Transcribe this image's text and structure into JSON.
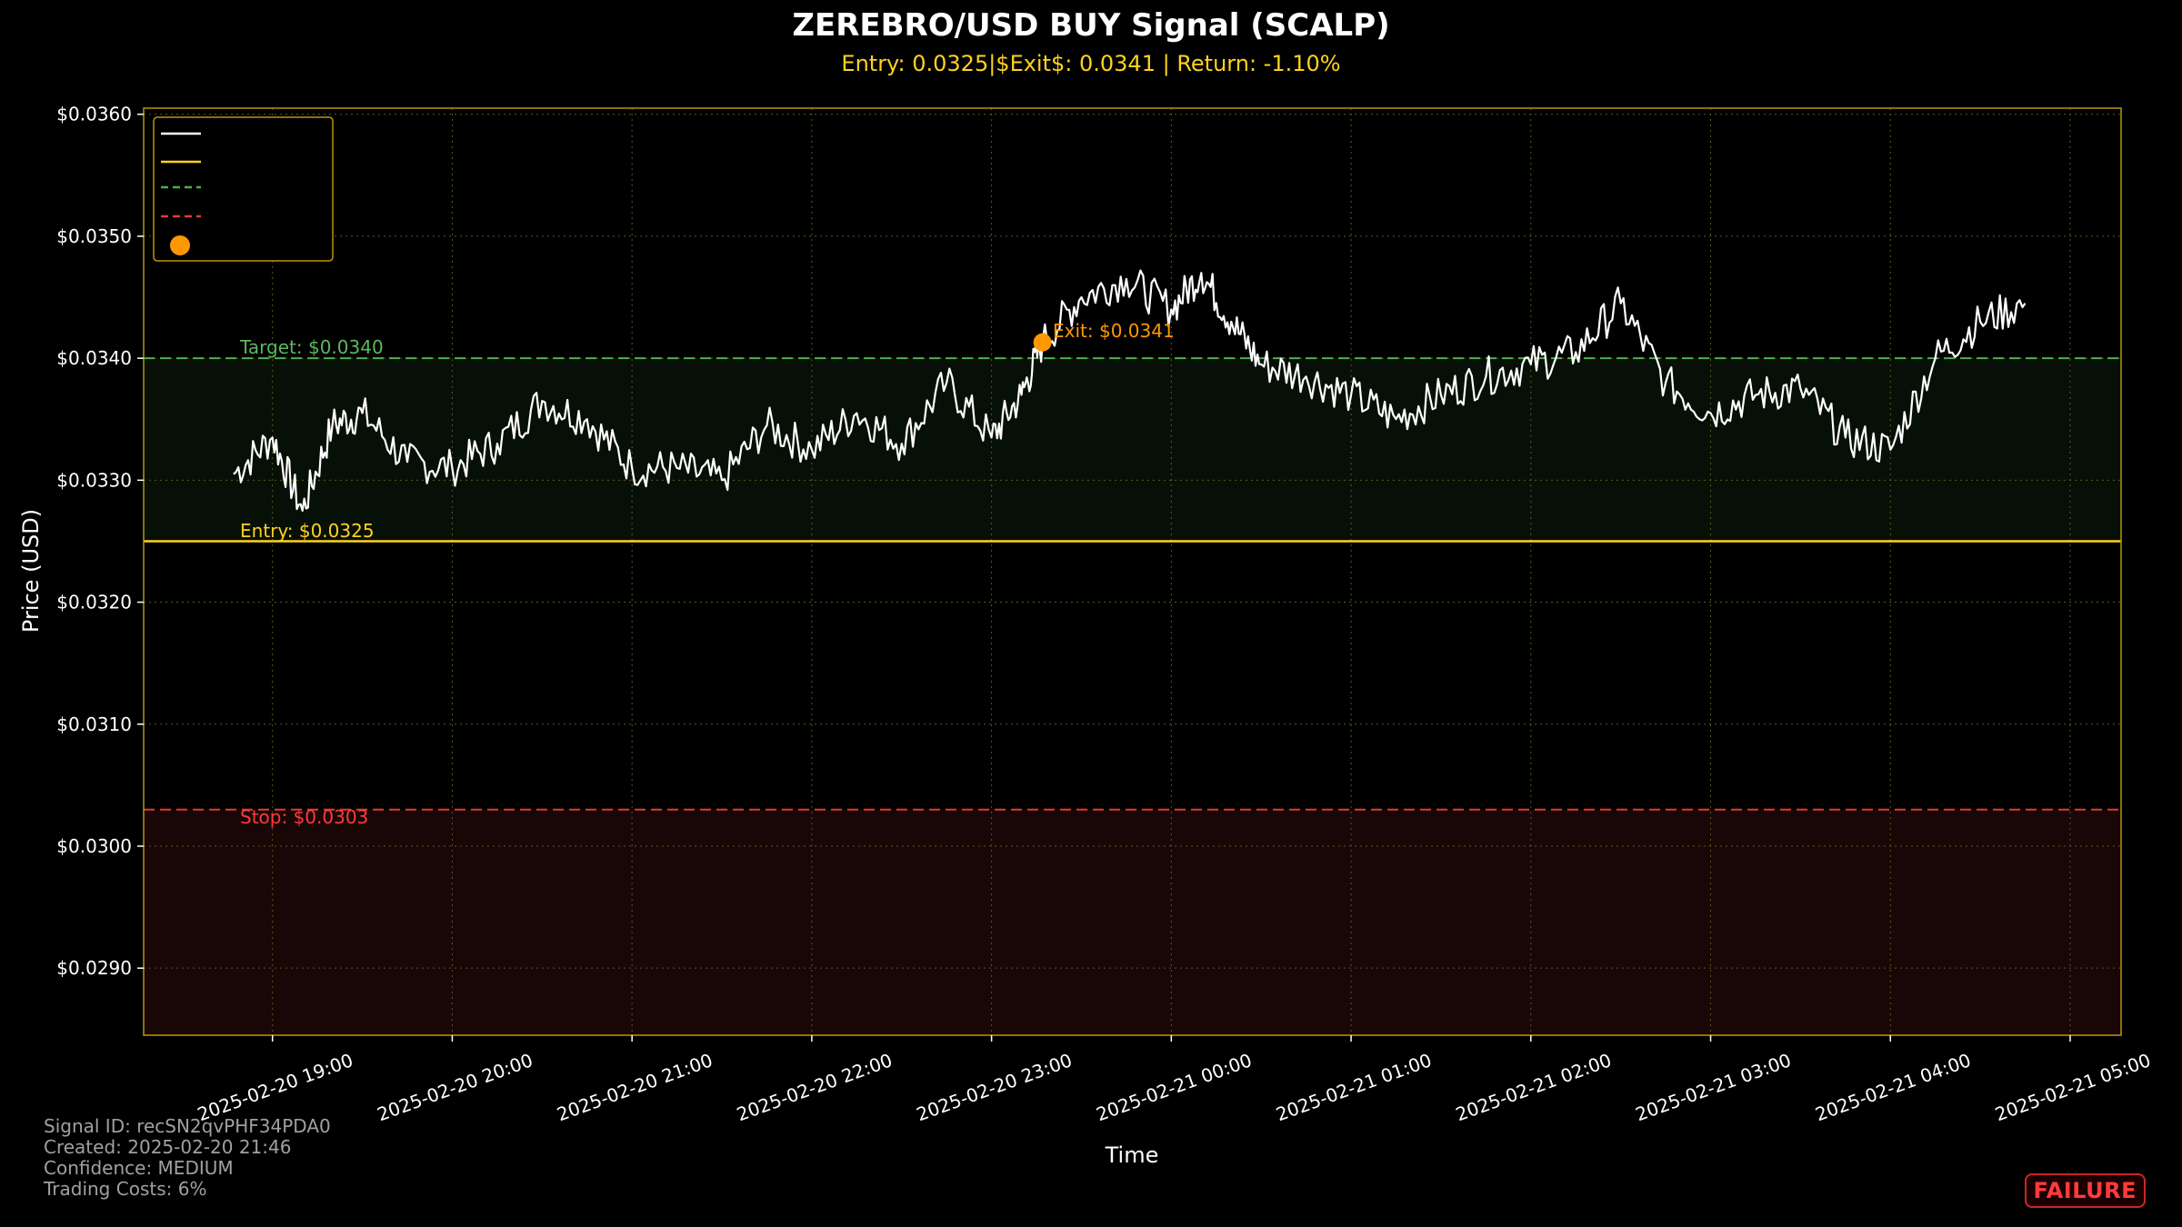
{
  "header": {
    "title": "ZEREBRO/USD BUY Signal (SCALP)",
    "subtitle": "Entry: 0.0325|$Exit$: 0.0341 | Return: -1.10%"
  },
  "footer": {
    "line1": "Signal ID: recSN2qvPHF34PDA0",
    "line2": "Created: 2025-02-20 21:46",
    "line3": "Confidence: MEDIUM",
    "line4": "Trading Costs: 6%"
  },
  "badge": {
    "label": "FAILURE"
  },
  "colors": {
    "background": "#000000",
    "price_line": "#ffffff",
    "entry": "#ffd21f",
    "target": "#4caf50",
    "stop": "#e53935",
    "exit_marker": "#ff9800",
    "frame": "#b8960b"
  },
  "chart_data": {
    "type": "line",
    "xlabel": "Time",
    "ylabel": "Price (USD)",
    "ylim": [
      0.02845,
      0.03605
    ],
    "xlim": [
      "2025-02-20 18:17",
      "2025-02-21 05:17"
    ],
    "yticks": [
      "$0.0290",
      "$0.0300",
      "$0.0310",
      "$0.0320",
      "$0.0330",
      "$0.0340",
      "$0.0350",
      "$0.0360"
    ],
    "ytick_values": [
      0.029,
      0.03,
      0.031,
      0.032,
      0.033,
      0.034,
      0.035,
      0.036
    ],
    "xticks": [
      "2025-02-20 19:00",
      "2025-02-20 20:00",
      "2025-02-20 21:00",
      "2025-02-20 22:00",
      "2025-02-20 23:00",
      "2025-02-21 00:00",
      "2025-02-21 01:00",
      "2025-02-21 02:00",
      "2025-02-21 03:00",
      "2025-02-21 04:00",
      "2025-02-21 05:00"
    ],
    "grid": true,
    "legend_position": "top-left",
    "levels": {
      "target": {
        "value": 0.034,
        "label": "Target: $0.0340"
      },
      "entry": {
        "value": 0.0325,
        "label": "Entry: $0.0325"
      },
      "stop": {
        "value": 0.0303,
        "label": "Stop: $0.0303"
      }
    },
    "exit_point": {
      "time": "2025-02-20 23:17",
      "value": 0.03413,
      "label": "Exit: $0.0341"
    },
    "series": [
      {
        "x": [
          "2025-02-20 18:47",
          "2025-02-20 19:00",
          "2025-02-20 19:10",
          "2025-02-20 19:20",
          "2025-02-20 19:30",
          "2025-02-20 19:45",
          "2025-02-20 20:00",
          "2025-02-20 20:15",
          "2025-02-20 20:30",
          "2025-02-20 20:45",
          "2025-02-20 21:00",
          "2025-02-20 21:15",
          "2025-02-20 21:30",
          "2025-02-20 21:45",
          "2025-02-20 22:00",
          "2025-02-20 22:15",
          "2025-02-20 22:30",
          "2025-02-20 22:45",
          "2025-02-20 23:00",
          "2025-02-20 23:10",
          "2025-02-20 23:17",
          "2025-02-20 23:30",
          "2025-02-20 23:45",
          "2025-02-21 00:00",
          "2025-02-21 00:10",
          "2025-02-21 00:20",
          "2025-02-21 00:30",
          "2025-02-21 00:45",
          "2025-02-21 01:00",
          "2025-02-21 01:15",
          "2025-02-21 01:30",
          "2025-02-21 01:45",
          "2025-02-21 02:00",
          "2025-02-21 02:15",
          "2025-02-21 02:30",
          "2025-02-21 02:45",
          "2025-02-21 03:00",
          "2025-02-21 03:15",
          "2025-02-21 03:30",
          "2025-02-21 03:45",
          "2025-02-21 04:00",
          "2025-02-21 04:15",
          "2025-02-21 04:30",
          "2025-02-21 04:45"
        ],
        "values": [
          0.03305,
          0.03335,
          0.03275,
          0.03345,
          0.03355,
          0.03315,
          0.0331,
          0.0333,
          0.03365,
          0.0335,
          0.0331,
          0.0331,
          0.033,
          0.03345,
          0.03325,
          0.03355,
          0.0333,
          0.0338,
          0.03335,
          0.0337,
          0.03413,
          0.0345,
          0.03465,
          0.0344,
          0.0347,
          0.0343,
          0.03395,
          0.03385,
          0.0337,
          0.0335,
          0.0337,
          0.03385,
          0.03395,
          0.03405,
          0.03445,
          0.0338,
          0.03355,
          0.0337,
          0.03375,
          0.03335,
          0.03325,
          0.034,
          0.0343,
          0.03445
        ]
      }
    ]
  }
}
